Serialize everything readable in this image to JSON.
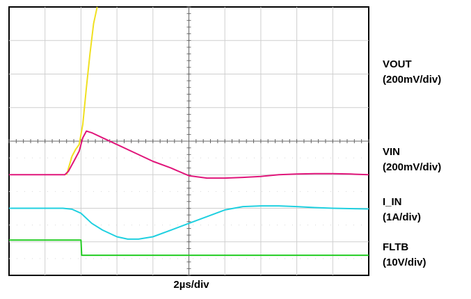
{
  "chart_data": {
    "type": "line",
    "title": "",
    "xlabel": "2µs/div",
    "ylabel": "",
    "grid": true,
    "divisions": {
      "horizontal": 10,
      "vertical": 8
    },
    "xlim": [
      0,
      10
    ],
    "ylim": [
      0,
      8
    ],
    "channel_labels": [
      {
        "name": "VOUT",
        "scale": "(200mV/div)"
      },
      {
        "name": "VIN",
        "scale": "(200mV/div)"
      },
      {
        "name": "I_IN",
        "scale": "(1A/div)"
      },
      {
        "name": "FLTB",
        "scale": "(10V/div)"
      }
    ],
    "series": [
      {
        "color": "#f0e020",
        "points": [
          [
            1.6,
            3.0
          ],
          [
            1.75,
            3.55
          ],
          [
            1.85,
            3.75
          ],
          [
            1.95,
            3.9
          ],
          [
            2.05,
            4.5
          ],
          [
            2.15,
            5.6
          ],
          [
            2.25,
            6.6
          ],
          [
            2.35,
            7.5
          ],
          [
            2.45,
            8.0
          ]
        ]
      },
      {
        "color": "#e0157a",
        "points": [
          [
            0,
            3.0
          ],
          [
            1.55,
            3.0
          ],
          [
            1.65,
            3.1
          ],
          [
            1.8,
            3.4
          ],
          [
            1.95,
            3.7
          ],
          [
            2.05,
            4.1
          ],
          [
            2.15,
            4.3
          ],
          [
            2.3,
            4.25
          ],
          [
            2.6,
            4.1
          ],
          [
            3.0,
            3.9
          ],
          [
            3.5,
            3.65
          ],
          [
            4.0,
            3.4
          ],
          [
            4.5,
            3.2
          ],
          [
            5.0,
            2.97
          ],
          [
            5.5,
            2.9
          ],
          [
            6.0,
            2.9
          ],
          [
            6.5,
            2.92
          ],
          [
            7.0,
            2.95
          ],
          [
            7.5,
            3.0
          ],
          [
            8.0,
            3.02
          ],
          [
            8.5,
            3.03
          ],
          [
            9.0,
            3.03
          ],
          [
            9.5,
            3.02
          ],
          [
            10.0,
            3.0
          ]
        ]
      },
      {
        "color": "#1fd0e0",
        "points": [
          [
            0,
            2.0
          ],
          [
            1.5,
            2.0
          ],
          [
            1.75,
            1.97
          ],
          [
            2.0,
            1.85
          ],
          [
            2.3,
            1.55
          ],
          [
            2.6,
            1.35
          ],
          [
            3.0,
            1.15
          ],
          [
            3.3,
            1.08
          ],
          [
            3.6,
            1.08
          ],
          [
            4.0,
            1.15
          ],
          [
            4.5,
            1.35
          ],
          [
            5.0,
            1.55
          ],
          [
            5.5,
            1.75
          ],
          [
            6.0,
            1.95
          ],
          [
            6.5,
            2.05
          ],
          [
            7.0,
            2.07
          ],
          [
            7.5,
            2.07
          ],
          [
            8.0,
            2.05
          ],
          [
            8.5,
            2.02
          ],
          [
            9.0,
            2.0
          ],
          [
            10.0,
            1.98
          ]
        ]
      },
      {
        "color": "#22cc22",
        "points": [
          [
            0,
            1.05
          ],
          [
            2.0,
            1.05
          ],
          [
            2.02,
            0.6
          ],
          [
            10.0,
            0.6
          ]
        ]
      }
    ]
  }
}
